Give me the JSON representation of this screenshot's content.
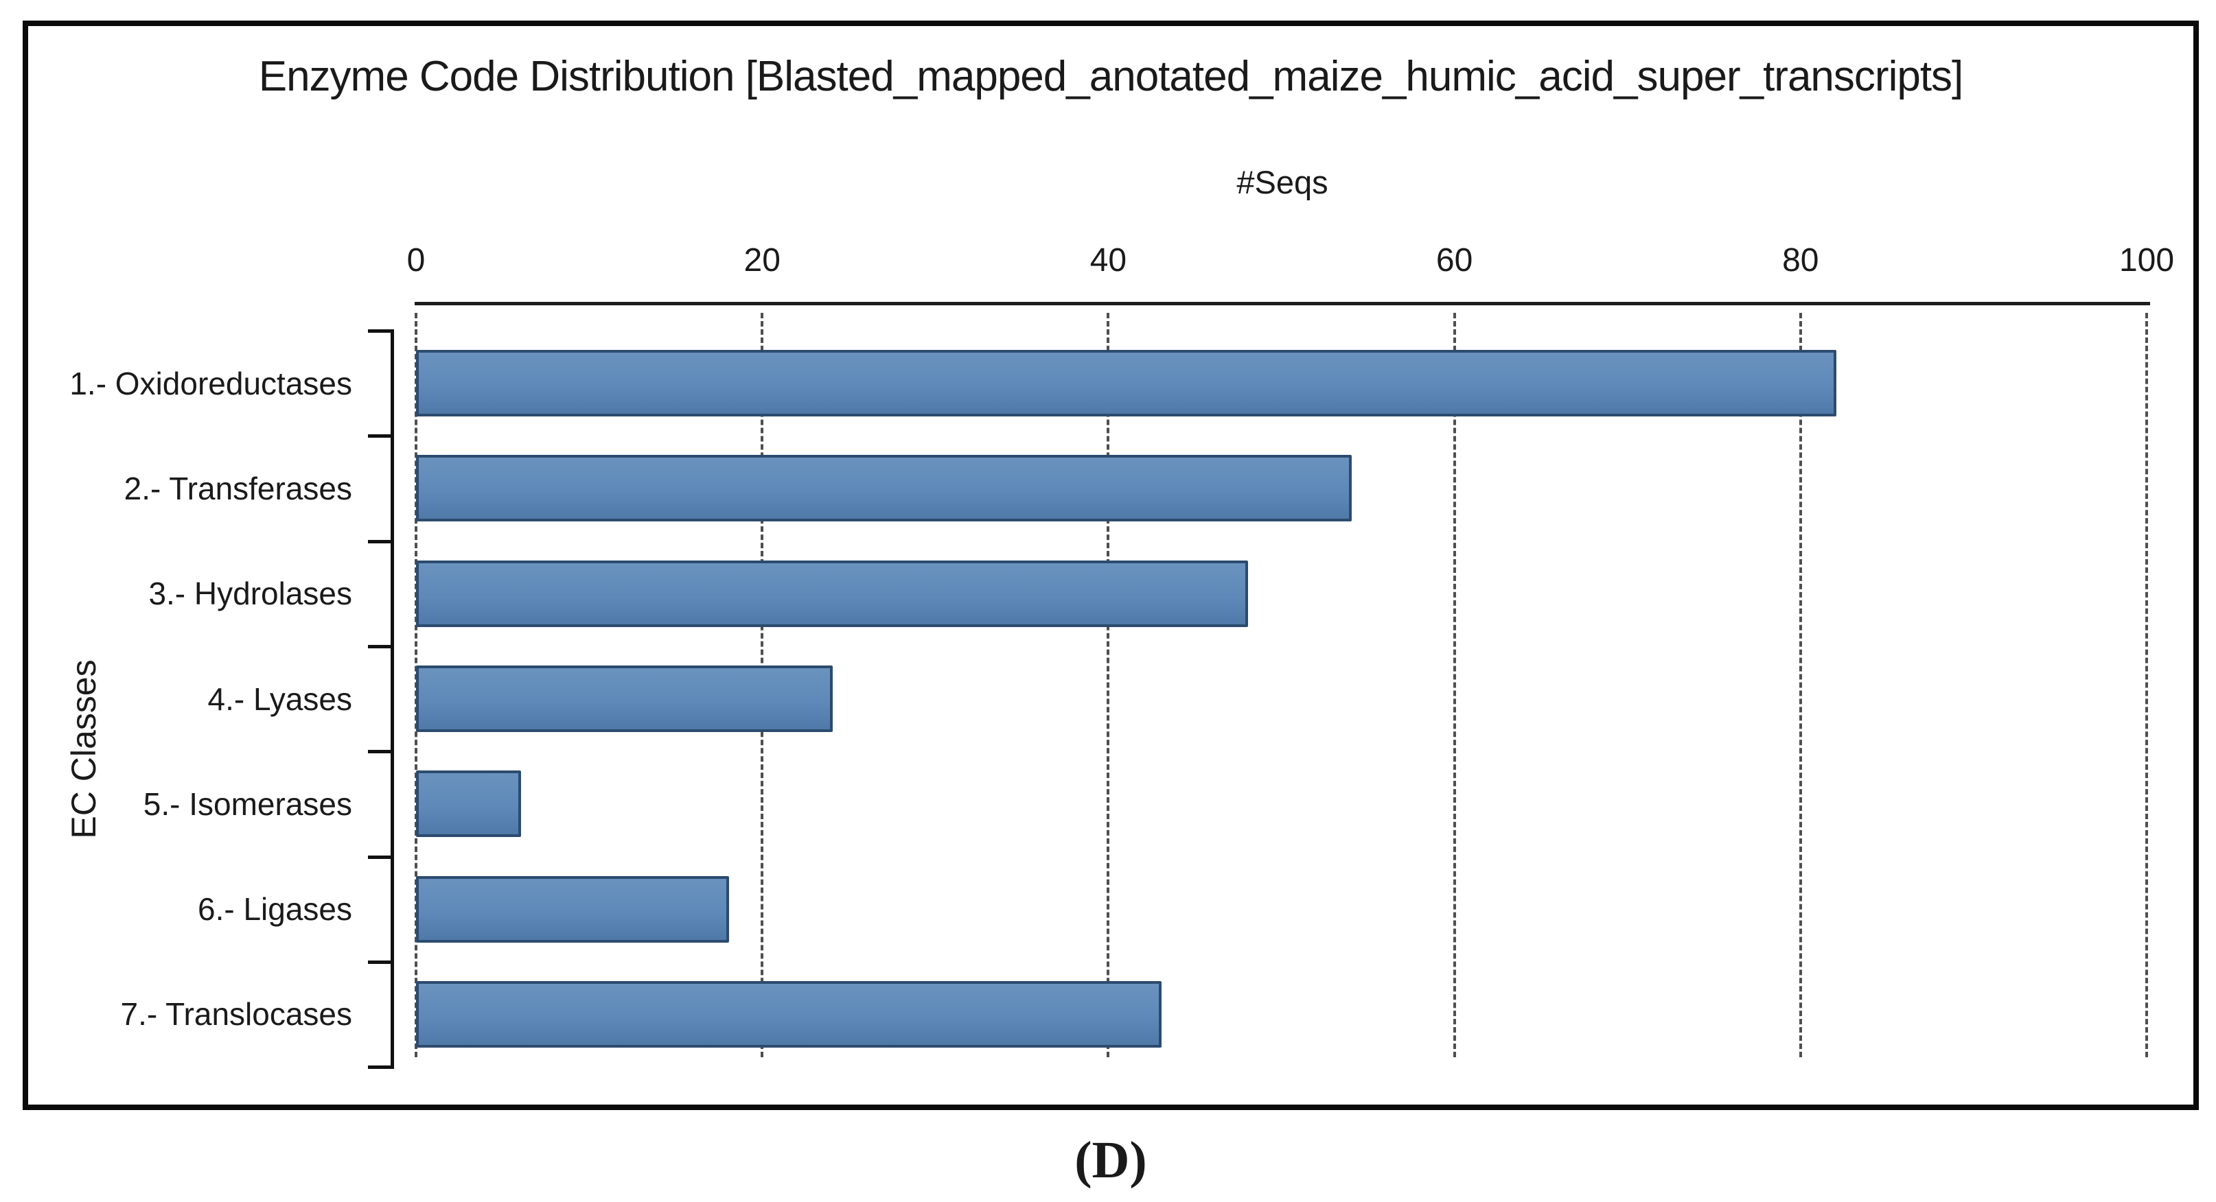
{
  "page": {
    "caption": "(D)"
  },
  "chart_data": {
    "type": "bar",
    "orientation": "horizontal",
    "title": "Enzyme Code Distribution [Blasted_mapped_anotated_maize_humic_acid_super_transcripts]",
    "xlabel": "#Seqs",
    "ylabel": "EC Classes",
    "categories": [
      "1.- Oxidoreductases",
      "2.- Transferases",
      "3.- Hydrolases",
      "4.- Lyases",
      "5.- Isomerases",
      "6.- Ligases",
      "7.- Translocases"
    ],
    "values": [
      82,
      54,
      48,
      24,
      6,
      18,
      43
    ],
    "xlim": [
      0,
      100
    ],
    "xticks": [
      0,
      20,
      40,
      60,
      80,
      100
    ],
    "grid": "vertical dashed gridlines at each x tick",
    "legend": "none",
    "colors": {
      "bar_fill": "#5e89b8",
      "bar_border": "#2c4b6e",
      "axis": "#1a1a1a",
      "gridline": "#4f4f4f",
      "frame_border": "#0a0a0a",
      "background": "#ffffff"
    }
  }
}
